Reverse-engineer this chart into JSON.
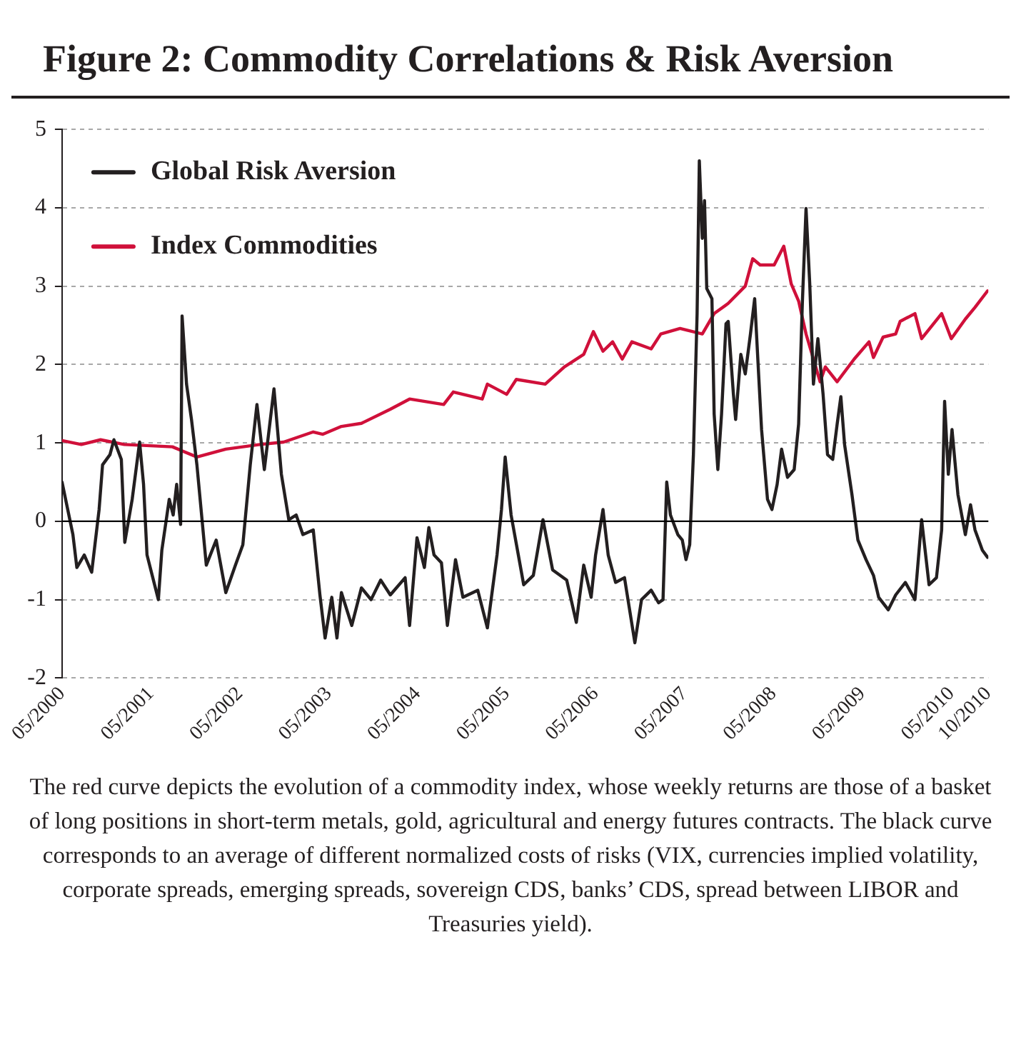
{
  "chart_data": {
    "type": "line",
    "title": "Figure 2:  Commodity Correlations & Risk Aversion",
    "annotations": [
      "The red curve depicts the evolution of a commodity index, whose weekly returns are those of a basket of long positions in short-term metals, gold, agricultural and energy futures contracts. The black curve corresponds to an average of different normalized costs of risks (VIX, currencies implied volatility, corporate spreads, emerging spreads, sovereign CDS, banks’ CDS, spread between LIBOR and Treasuries yield)."
    ],
    "xlim": [
      "2000-05",
      "2010-10"
    ],
    "xticks": [
      {
        "value": "2000-05",
        "label": "05/2000"
      },
      {
        "value": "2001-05",
        "label": "05/2001"
      },
      {
        "value": "2002-05",
        "label": "05/2002"
      },
      {
        "value": "2003-05",
        "label": "05/2003"
      },
      {
        "value": "2004-05",
        "label": "05/2004"
      },
      {
        "value": "2005-05",
        "label": "05/2005"
      },
      {
        "value": "2006-05",
        "label": "05/2006"
      },
      {
        "value": "2007-05",
        "label": "05/2007"
      },
      {
        "value": "2008-05",
        "label": "05/2008"
      },
      {
        "value": "2009-05",
        "label": "05/2009"
      },
      {
        "value": "2010-05",
        "label": "05/2010"
      },
      {
        "value": "2010-10",
        "label": "10/2010"
      }
    ],
    "ylim": [
      -2,
      5
    ],
    "yticks": [
      -2,
      -1,
      0,
      1,
      2,
      3,
      4,
      5
    ],
    "grid": "y",
    "legend": "top left",
    "line_style": "solid",
    "marker": "none",
    "ref_lines": [
      {
        "axis": "y",
        "value": 0,
        "color": "#000000"
      }
    ],
    "series": [
      {
        "name": "Global Risk Aversion",
        "color": "#231f20",
        "x": [
          "2000-05-01",
          "2000-06-15",
          "2000-07-01",
          "2000-08-01",
          "2000-09-01",
          "2000-10-01",
          "2000-10-15",
          "2000-11-15",
          "2000-12-01",
          "2001-01-01",
          "2001-01-15",
          "2001-02-15",
          "2001-03-15",
          "2001-04-01",
          "2001-04-15",
          "2001-06-01",
          "2001-06-15",
          "2001-07-15",
          "2001-08-01",
          "2001-08-15",
          "2001-09-01",
          "2001-09-07",
          "2001-09-25",
          "2001-10-15",
          "2001-11-07",
          "2001-12-15",
          "2002-01-25",
          "2002-03-04",
          "2002-04-13",
          "2002-05-13",
          "2002-06-13",
          "2002-07-10",
          "2002-08-10",
          "2002-09-19",
          "2002-10-19",
          "2002-11-19",
          "2002-12-19",
          "2003-01-16",
          "2003-02-28",
          "2003-03-25",
          "2003-04-16",
          "2003-05-13",
          "2003-06-04",
          "2003-06-22",
          "2003-08-04",
          "2003-09-13",
          "2003-10-22",
          "2003-12-01",
          "2004-01-10",
          "2004-03-10",
          "2004-03-28",
          "2004-04-28",
          "2004-05-28",
          "2004-06-16",
          "2004-07-07",
          "2004-08-07",
          "2004-09-01",
          "2004-10-04",
          "2004-11-04",
          "2005-01-04",
          "2005-02-13",
          "2005-03-22",
          "2005-04-10",
          "2005-04-25",
          "2005-05-19",
          "2005-07-10",
          "2005-08-19",
          "2005-09-28",
          "2005-11-07",
          "2006-01-04",
          "2006-02-13",
          "2006-03-13",
          "2006-04-13",
          "2006-05-01",
          "2006-06-01",
          "2006-06-22",
          "2006-07-22",
          "2006-08-28",
          "2006-10-10",
          "2006-11-07",
          "2006-12-16",
          "2007-01-16",
          "2007-02-04",
          "2007-02-19",
          "2007-03-04",
          "2007-04-04",
          "2007-04-22",
          "2007-05-07",
          "2007-05-22",
          "2007-06-07",
          "2007-06-22",
          "2007-07-01",
          "2007-07-13",
          "2007-07-22",
          "2007-08-01",
          "2007-08-22",
          "2007-09-01",
          "2007-09-16",
          "2007-10-01",
          "2007-10-19",
          "2007-10-28",
          "2007-11-19",
          "2007-11-28",
          "2007-12-19",
          "2008-01-07",
          "2008-01-28",
          "2008-02-15",
          "2008-03-01",
          "2008-03-13",
          "2008-04-07",
          "2008-04-25",
          "2008-05-16",
          "2008-06-04",
          "2008-06-28",
          "2008-07-25",
          "2008-08-13",
          "2008-08-28",
          "2008-09-13",
          "2008-09-28",
          "2008-10-13",
          "2008-11-01",
          "2008-11-22",
          "2008-12-10",
          "2009-01-01",
          "2009-01-19",
          "2009-02-04",
          "2009-02-19",
          "2009-03-19",
          "2009-04-13",
          "2009-05-16",
          "2009-06-16",
          "2009-07-07",
          "2009-08-16",
          "2009-09-16",
          "2009-10-25",
          "2009-12-04",
          "2010-01-01",
          "2010-02-01",
          "2010-03-01",
          "2010-03-22",
          "2010-04-04",
          "2010-04-19",
          "2010-05-04",
          "2010-05-28",
          "2010-06-28",
          "2010-07-19",
          "2010-08-07",
          "2010-09-07",
          "2010-09-28"
        ],
        "values": [
          0.5,
          -0.17,
          -0.59,
          -0.43,
          -0.65,
          0.15,
          0.72,
          0.85,
          1.04,
          0.79,
          -0.27,
          0.28,
          1.01,
          0.47,
          -0.43,
          -1.0,
          -0.37,
          0.28,
          0.08,
          0.47,
          -0.04,
          2.62,
          1.75,
          1.3,
          0.72,
          -0.56,
          -0.24,
          -0.91,
          -0.56,
          -0.3,
          0.72,
          1.49,
          0.66,
          1.69,
          0.6,
          0.02,
          0.08,
          -0.17,
          -0.11,
          -0.94,
          -1.49,
          -0.97,
          -1.49,
          -0.91,
          -1.33,
          -0.85,
          -1.0,
          -0.75,
          -0.94,
          -0.72,
          -1.33,
          -0.21,
          -0.59,
          -0.08,
          -0.43,
          -0.53,
          -1.33,
          -0.49,
          -0.97,
          -0.88,
          -1.36,
          -0.43,
          0.15,
          0.82,
          0.08,
          -0.81,
          -0.69,
          0.02,
          -0.62,
          -0.75,
          -1.29,
          -0.56,
          -0.97,
          -0.43,
          0.15,
          -0.43,
          -0.78,
          -0.72,
          -1.55,
          -1.0,
          -0.88,
          -1.04,
          -1.0,
          0.5,
          0.08,
          -0.17,
          -0.24,
          -0.49,
          -0.3,
          0.85,
          2.65,
          4.6,
          3.61,
          4.09,
          2.97,
          2.84,
          1.37,
          0.66,
          1.37,
          2.52,
          2.55,
          1.62,
          1.3,
          2.13,
          1.88,
          2.39,
          2.84,
          1.88,
          1.17,
          0.28,
          0.15,
          0.47,
          0.92,
          0.56,
          0.66,
          1.24,
          2.78,
          3.99,
          3.03,
          1.75,
          2.33,
          1.62,
          0.85,
          0.79,
          1.24,
          1.59,
          0.98,
          0.34,
          -0.24,
          -0.49,
          -0.69,
          -0.97,
          -1.13,
          -0.94,
          -0.78,
          -1.0,
          0.02,
          -0.81,
          -0.72,
          -0.11,
          1.53,
          0.6,
          1.17,
          0.34,
          -0.17,
          0.21,
          -0.11,
          -0.37,
          -0.46
        ]
      },
      {
        "name": "Index Commodities",
        "color": "#d0103a",
        "x": [
          "2000-05-01",
          "2000-07-19",
          "2000-10-07",
          "2001-01-13",
          "2001-07-28",
          "2001-11-07",
          "2002-03-04",
          "2002-07-22",
          "2002-10-28",
          "2003-02-28",
          "2003-04-07",
          "2003-06-22",
          "2003-09-13",
          "2004-01-10",
          "2004-03-28",
          "2004-08-16",
          "2004-09-25",
          "2005-01-22",
          "2005-02-13",
          "2005-05-01",
          "2005-06-10",
          "2005-10-07",
          "2005-12-25",
          "2006-03-13",
          "2006-04-22",
          "2006-06-01",
          "2006-07-10",
          "2006-08-19",
          "2006-09-28",
          "2006-12-16",
          "2007-01-25",
          "2007-04-13",
          "2007-07-13",
          "2007-09-01",
          "2007-10-28",
          "2008-01-07",
          "2008-02-07",
          "2008-03-07",
          "2008-05-04",
          "2008-06-13",
          "2008-07-13",
          "2008-08-13",
          "2008-09-13",
          "2008-10-13",
          "2008-11-10",
          "2008-12-01",
          "2009-01-19",
          "2009-03-28",
          "2009-05-28",
          "2009-06-16",
          "2009-07-25",
          "2009-09-16",
          "2009-10-04",
          "2009-12-04",
          "2010-01-01",
          "2010-03-22",
          "2010-05-01",
          "2010-06-28",
          "2010-08-07",
          "2010-09-28"
        ],
        "values": [
          1.03,
          0.98,
          1.04,
          0.98,
          0.95,
          0.82,
          0.92,
          0.98,
          1.01,
          1.14,
          1.11,
          1.21,
          1.25,
          1.43,
          1.56,
          1.49,
          1.65,
          1.56,
          1.75,
          1.62,
          1.81,
          1.75,
          1.97,
          2.13,
          2.42,
          2.17,
          2.29,
          2.07,
          2.29,
          2.2,
          2.39,
          2.46,
          2.39,
          2.65,
          2.78,
          3.0,
          3.35,
          3.27,
          3.27,
          3.51,
          3.03,
          2.81,
          2.39,
          2.07,
          1.78,
          1.97,
          1.78,
          2.07,
          2.29,
          2.09,
          2.35,
          2.39,
          2.55,
          2.65,
          2.33,
          2.65,
          2.33,
          2.58,
          2.73,
          2.94
        ]
      }
    ]
  }
}
